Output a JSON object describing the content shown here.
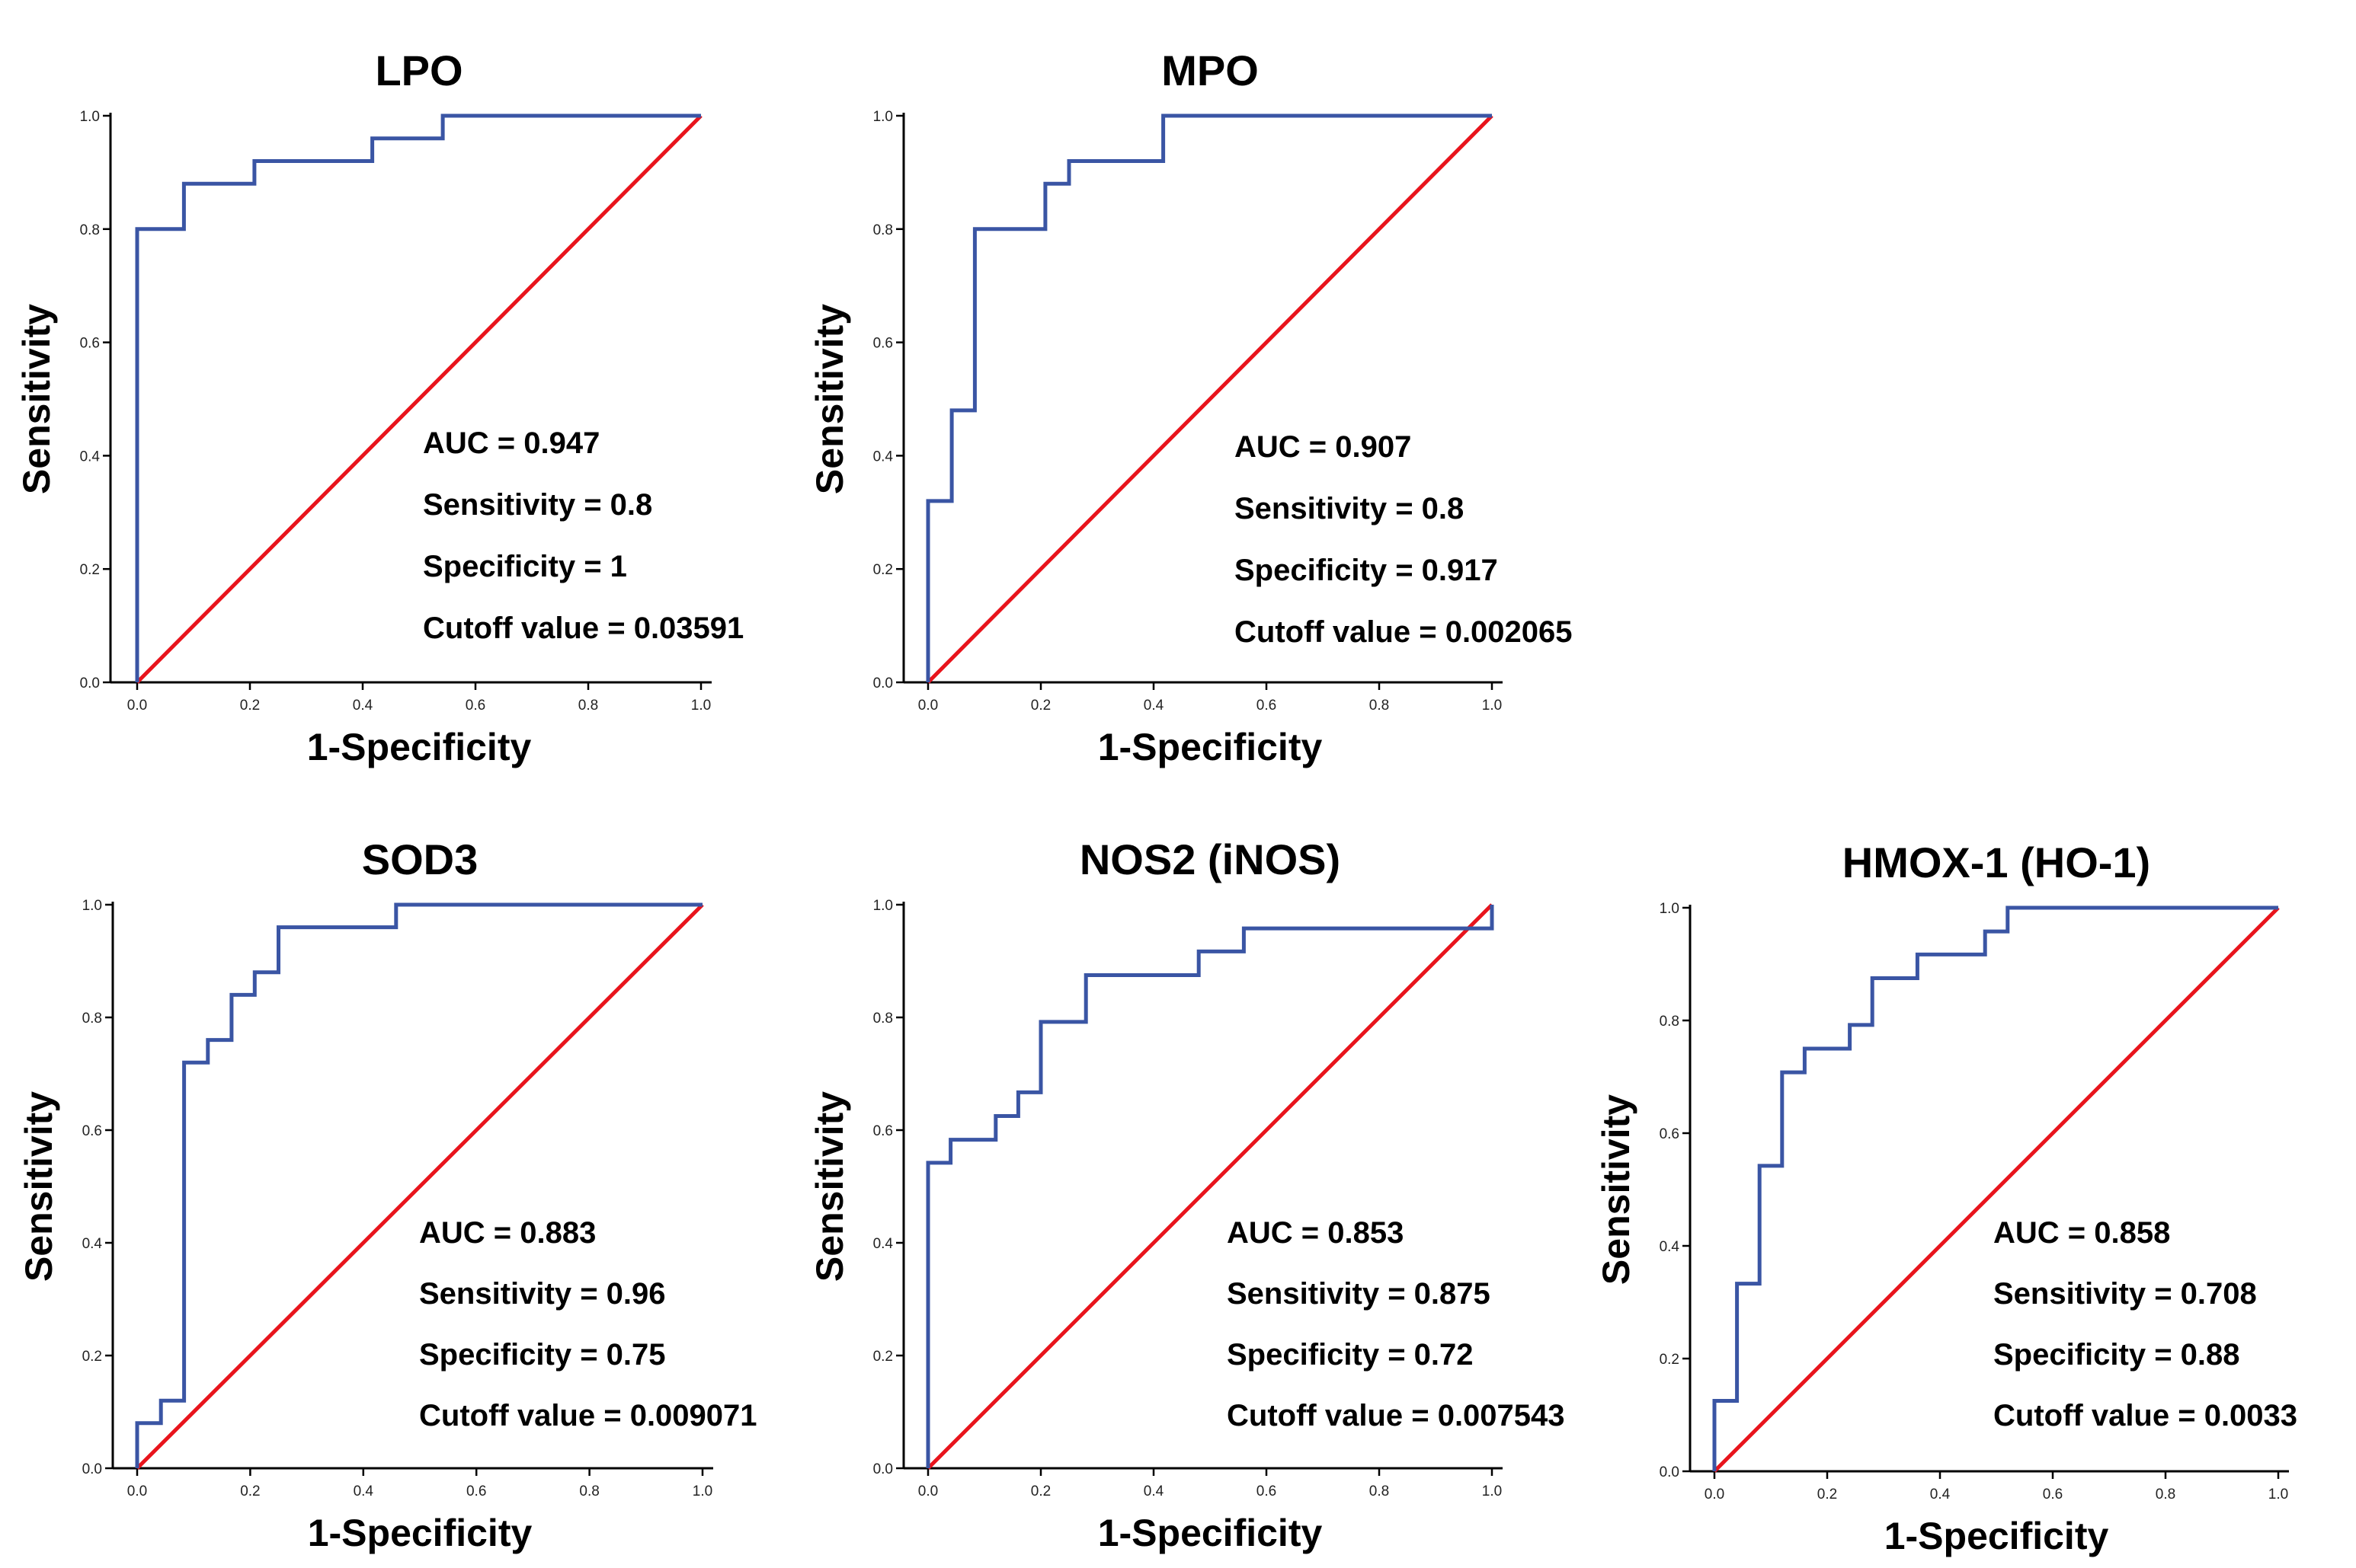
{
  "chart_data": [
    {
      "type": "line",
      "title": "LPO",
      "xlabel": "1-Specificity",
      "ylabel": "Sensitivity",
      "xlim": [
        0,
        1
      ],
      "ylim": [
        0,
        1
      ],
      "xticks": [
        "0.0",
        "0.2",
        "0.4",
        "0.6",
        "0.8",
        "1.0"
      ],
      "yticks": [
        "0.0",
        "0.2",
        "0.4",
        "0.6",
        "0.8",
        "1.0"
      ],
      "series": [
        {
          "name": "ROC",
          "color": "#3a55a4",
          "x": [
            0,
            0,
            0.083,
            0.083,
            0.208,
            0.208,
            0.417,
            0.417,
            0.542,
            0.542,
            1
          ],
          "y": [
            0,
            0.8,
            0.8,
            0.88,
            0.88,
            0.92,
            0.92,
            0.96,
            0.96,
            1,
            1
          ]
        },
        {
          "name": "Reference",
          "color": "#e8141c",
          "x": [
            0,
            1
          ],
          "y": [
            0,
            1
          ]
        }
      ],
      "annotations": [
        "AUC = 0.947",
        "Sensitivity = 0.8",
        "Specificity = 1",
        "Cutoff value = 0.03591"
      ]
    },
    {
      "type": "line",
      "title": "MPO",
      "xlabel": "1-Specificity",
      "ylabel": "Sensitivity",
      "xlim": [
        0,
        1
      ],
      "ylim": [
        0,
        1
      ],
      "xticks": [
        "0.0",
        "0.2",
        "0.4",
        "0.6",
        "0.8",
        "1.0"
      ],
      "yticks": [
        "0.0",
        "0.2",
        "0.4",
        "0.6",
        "0.8",
        "1.0"
      ],
      "series": [
        {
          "name": "ROC",
          "color": "#3a55a4",
          "x": [
            0,
            0,
            0.042,
            0.042,
            0.083,
            0.083,
            0.208,
            0.208,
            0.25,
            0.25,
            0.417,
            0.417,
            1
          ],
          "y": [
            0,
            0.32,
            0.32,
            0.48,
            0.48,
            0.8,
            0.8,
            0.88,
            0.88,
            0.92,
            0.92,
            1,
            1
          ]
        },
        {
          "name": "Reference",
          "color": "#e8141c",
          "x": [
            0,
            1
          ],
          "y": [
            0,
            1
          ]
        }
      ],
      "annotations": [
        "AUC = 0.907",
        "Sensitivity = 0.8",
        "Specificity = 0.917",
        "Cutoff value = 0.002065"
      ]
    },
    {
      "type": "line",
      "title": "SOD3",
      "xlabel": "1-Specificity",
      "ylabel": "Sensitivity",
      "xlim": [
        0,
        1
      ],
      "ylim": [
        0,
        1
      ],
      "xticks": [
        "0.0",
        "0.2",
        "0.4",
        "0.6",
        "0.8",
        "1.0"
      ],
      "yticks": [
        "0.0",
        "0.2",
        "0.4",
        "0.6",
        "0.8",
        "1.0"
      ],
      "series": [
        {
          "name": "ROC",
          "color": "#3a55a4",
          "x": [
            0,
            0,
            0.042,
            0.042,
            0.083,
            0.083,
            0.125,
            0.125,
            0.167,
            0.167,
            0.208,
            0.208,
            0.25,
            0.25,
            0.458,
            0.458,
            1
          ],
          "y": [
            0,
            0.08,
            0.08,
            0.12,
            0.12,
            0.72,
            0.72,
            0.76,
            0.76,
            0.84,
            0.84,
            0.88,
            0.88,
            0.96,
            0.96,
            1,
            1
          ]
        },
        {
          "name": "Reference",
          "color": "#e8141c",
          "x": [
            0,
            1
          ],
          "y": [
            0,
            1
          ]
        }
      ],
      "annotations": [
        "AUC = 0.883",
        "Sensitivity = 0.96",
        "Specificity = 0.75",
        "Cutoff value = 0.009071"
      ]
    },
    {
      "type": "line",
      "title": "NOS2 (iNOS)",
      "xlabel": "1-Specificity",
      "ylabel": "Sensitivity",
      "xlim": [
        0,
        1
      ],
      "ylim": [
        0,
        1
      ],
      "xticks": [
        "0.0",
        "0.2",
        "0.4",
        "0.6",
        "0.8",
        "1.0"
      ],
      "yticks": [
        "0.0",
        "0.2",
        "0.4",
        "0.6",
        "0.8",
        "1.0"
      ],
      "series": [
        {
          "name": "ROC",
          "color": "#3a55a4",
          "x": [
            0,
            0,
            0.04,
            0.04,
            0.12,
            0.12,
            0.16,
            0.16,
            0.2,
            0.2,
            0.28,
            0.28,
            0.48,
            0.48,
            0.56,
            0.56,
            1,
            1
          ],
          "y": [
            0,
            0.542,
            0.542,
            0.583,
            0.583,
            0.625,
            0.625,
            0.667,
            0.667,
            0.792,
            0.792,
            0.875,
            0.875,
            0.917,
            0.917,
            0.958,
            0.958,
            1
          ]
        },
        {
          "name": "Reference",
          "color": "#e8141c",
          "x": [
            0,
            1
          ],
          "y": [
            0,
            1
          ]
        }
      ],
      "annotations": [
        "AUC = 0.853",
        "Sensitivity = 0.875",
        "Specificity = 0.72",
        "Cutoff value = 0.007543"
      ]
    },
    {
      "type": "line",
      "title": "HMOX-1 (HO-1)",
      "xlabel": "1-Specificity",
      "ylabel": "Sensitivity",
      "xlim": [
        0,
        1
      ],
      "ylim": [
        0,
        1
      ],
      "xticks": [
        "0.0",
        "0.2",
        "0.4",
        "0.6",
        "0.8",
        "1.0"
      ],
      "yticks": [
        "0.0",
        "0.2",
        "0.4",
        "0.6",
        "0.8",
        "1.0"
      ],
      "series": [
        {
          "name": "ROC",
          "color": "#3a55a4",
          "x": [
            0,
            0,
            0.04,
            0.04,
            0.08,
            0.08,
            0.12,
            0.12,
            0.16,
            0.16,
            0.24,
            0.24,
            0.28,
            0.28,
            0.36,
            0.36,
            0.48,
            0.48,
            0.52,
            0.52,
            1
          ],
          "y": [
            0,
            0.125,
            0.125,
            0.333,
            0.333,
            0.542,
            0.542,
            0.708,
            0.708,
            0.75,
            0.75,
            0.792,
            0.792,
            0.875,
            0.875,
            0.917,
            0.917,
            0.958,
            0.958,
            1,
            1
          ]
        },
        {
          "name": "Reference",
          "color": "#e8141c",
          "x": [
            0,
            1
          ],
          "y": [
            0,
            1
          ]
        }
      ],
      "annotations": [
        "AUC = 0.858",
        "Sensitivity = 0.708",
        "Specificity = 0.88",
        "Cutoff value = 0.0033"
      ]
    }
  ]
}
